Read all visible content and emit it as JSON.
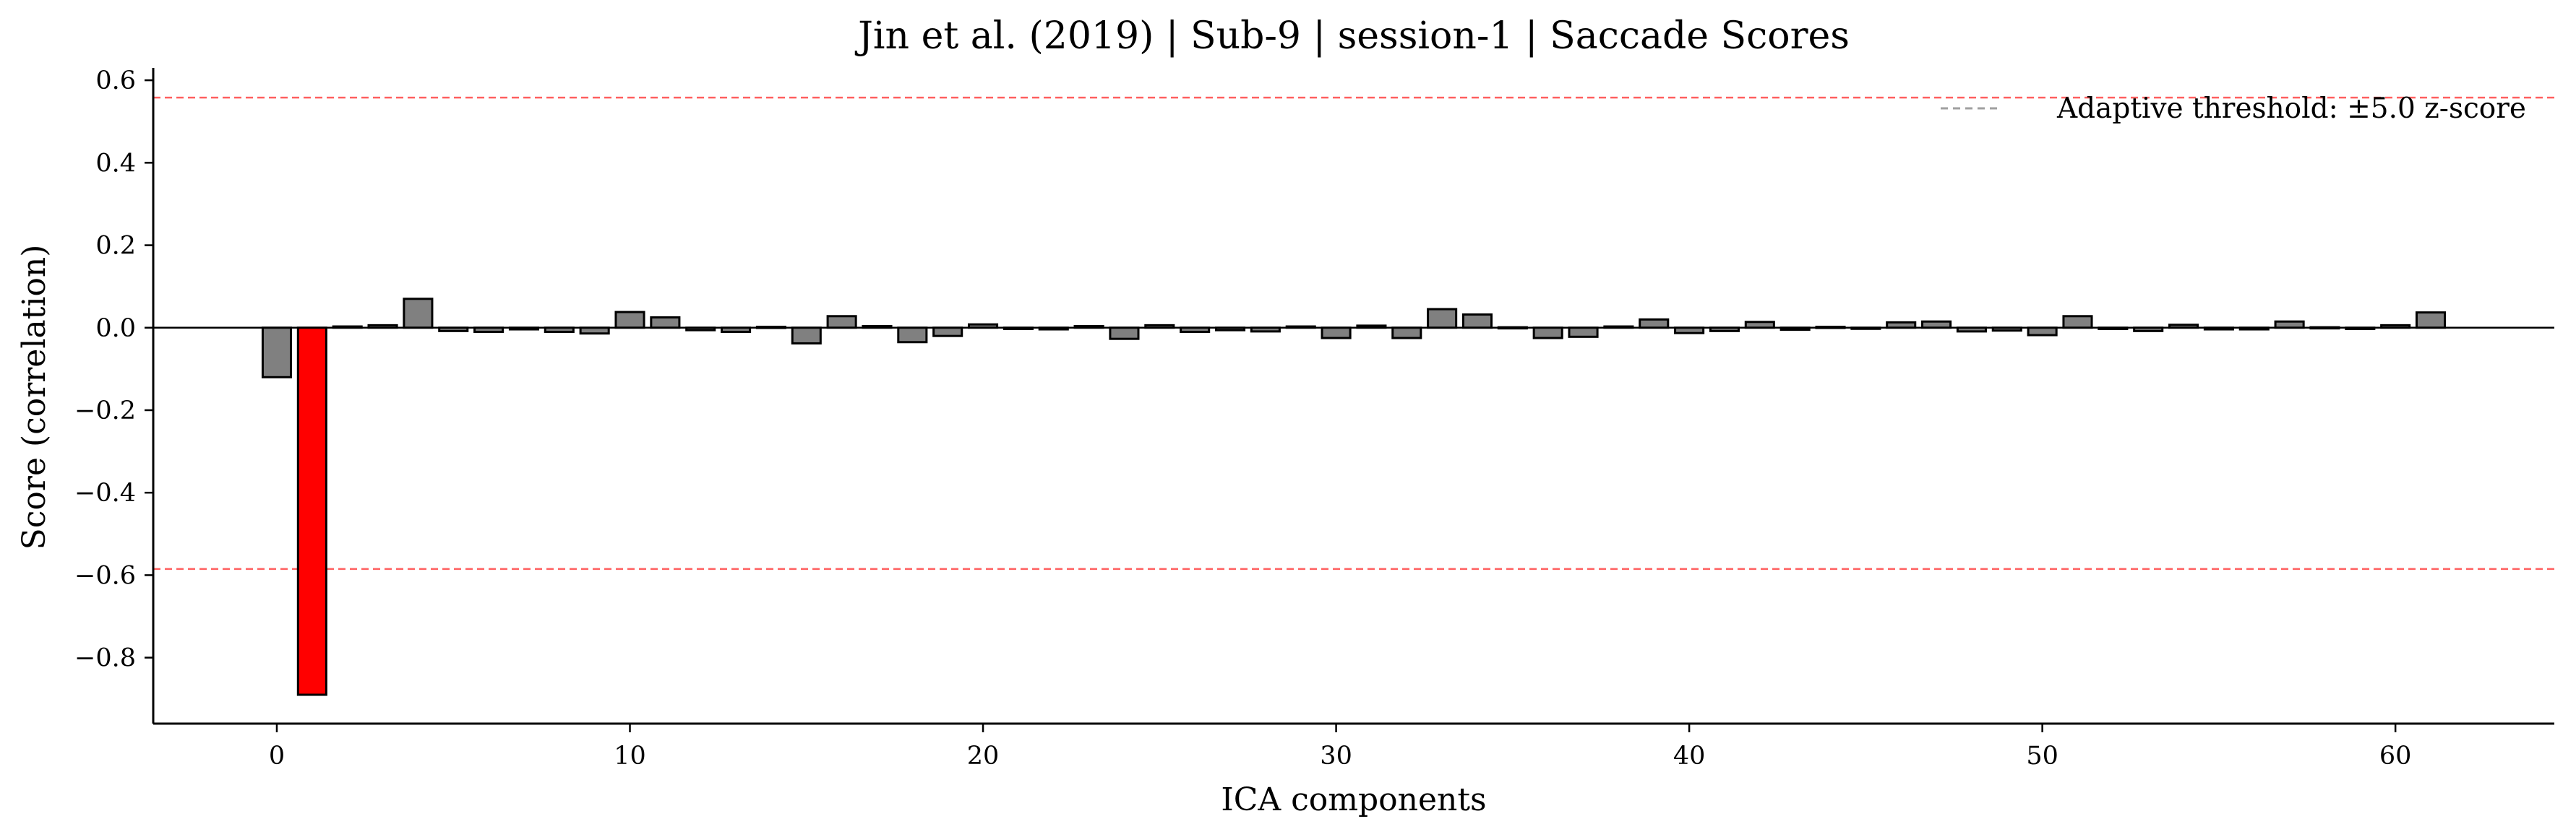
{
  "chart_data": {
    "type": "bar",
    "title": "Jin et al. (2019) | Sub-9 | session-1 | Saccade Scores",
    "xlabel": "ICA components",
    "ylabel": "Score (correlation)",
    "xlim": [
      -3.5,
      64.5
    ],
    "ylim": [
      -0.96,
      0.63
    ],
    "xticks": [
      0,
      10,
      20,
      30,
      40,
      50,
      60
    ],
    "xtick_labels": [
      "0",
      "10",
      "20",
      "30",
      "40",
      "50",
      "60"
    ],
    "yticks": [
      -0.8,
      -0.6,
      -0.4,
      -0.2,
      0.0,
      0.2,
      0.4,
      0.6
    ],
    "ytick_labels": [
      "−0.8",
      "−0.6",
      "−0.4",
      "−0.2",
      "0.0",
      "0.2",
      "0.4",
      "0.6"
    ],
    "grid": false,
    "x": [
      0,
      1,
      2,
      3,
      4,
      5,
      6,
      7,
      8,
      9,
      10,
      11,
      12,
      13,
      14,
      15,
      16,
      17,
      18,
      19,
      20,
      21,
      22,
      23,
      24,
      25,
      26,
      27,
      28,
      29,
      30,
      31,
      32,
      33,
      34,
      35,
      36,
      37,
      38,
      39,
      40,
      41,
      42,
      43,
      44,
      45,
      46,
      47,
      48,
      49,
      50,
      51,
      52,
      53,
      54,
      55,
      56,
      57,
      58,
      59,
      60,
      61
    ],
    "values": [
      -0.12,
      -0.89,
      0.003,
      0.006,
      0.07,
      -0.008,
      -0.01,
      -0.004,
      -0.01,
      -0.014,
      0.038,
      0.025,
      -0.006,
      -0.01,
      0.002,
      -0.038,
      0.028,
      0.004,
      -0.035,
      -0.02,
      0.008,
      -0.003,
      -0.004,
      0.004,
      -0.027,
      0.006,
      -0.01,
      -0.006,
      -0.009,
      0.003,
      -0.025,
      0.005,
      -0.025,
      0.045,
      0.032,
      0.001,
      -0.025,
      -0.022,
      0.003,
      0.02,
      -0.013,
      -0.008,
      0.014,
      -0.005,
      0.002,
      -0.002,
      0.013,
      0.015,
      -0.009,
      -0.007,
      -0.018,
      0.028,
      -0.003,
      -0.008,
      0.007,
      -0.004,
      -0.004,
      0.015,
      0.001,
      -0.003,
      0.006,
      0.037
    ],
    "highlighted_indices": [
      1
    ],
    "bar_color": "#808080",
    "highlight_color": "#ff0000",
    "edge_color": "#000000",
    "zero_line": 0.0,
    "thresholds": [
      0.558,
      -0.585
    ],
    "threshold_color": "#ff6060",
    "legend": {
      "placement": "top-right",
      "entries": [
        {
          "label": "Adaptive threshold: ±5.0 z-score",
          "color": "#a0a0a0",
          "style": "dashed"
        }
      ]
    }
  }
}
